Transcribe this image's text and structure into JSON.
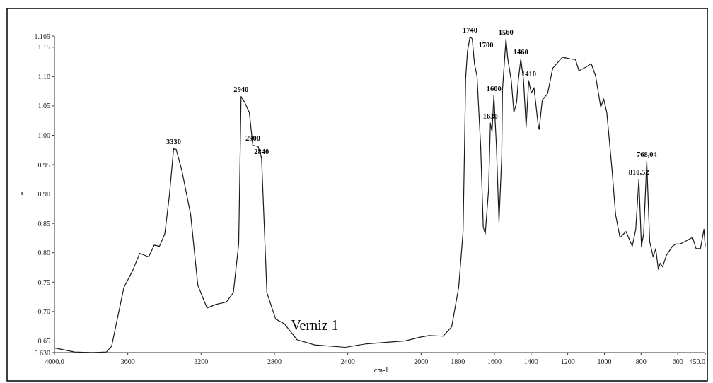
{
  "chart_data": {
    "type": "line",
    "xlabel": "cm-1",
    "ylabel": "A",
    "xlim": [
      4000,
      450
    ],
    "ylim": [
      0.63,
      1.169
    ],
    "xticks": [
      {
        "value": 4000,
        "label": "4000.0"
      },
      3600,
      3200,
      2800,
      2400,
      2000,
      1800,
      1600,
      1400,
      1200,
      1000,
      800,
      600,
      {
        "value": 450,
        "label": "450.0"
      }
    ],
    "yticks": [
      {
        "value": 0.63,
        "label": "0.630"
      },
      0.65,
      {
        "value": 0.7,
        "label": "0.70"
      },
      0.75,
      {
        "value": 0.8,
        "label": "0.80"
      },
      0.85,
      {
        "value": 0.9,
        "label": "0.90"
      },
      0.95,
      {
        "value": 1.0,
        "label": "1.00"
      },
      1.05,
      {
        "value": 1.1,
        "label": "1.10"
      },
      1.15,
      1.169
    ],
    "grid": false,
    "marker": "none",
    "line_style": "solid",
    "series": [
      {
        "color": "#1a1a1a",
        "x": [
          4000,
          3891,
          3794,
          3717,
          3688,
          3660,
          3621,
          3573,
          3535,
          3486,
          3456,
          3427,
          3398,
          3373,
          3350,
          3336,
          3305,
          3257,
          3218,
          3168,
          3120,
          3063,
          3024,
          2995,
          2982,
          2962,
          2937,
          2918,
          2889,
          2870,
          2841,
          2793,
          2745,
          2677,
          2581,
          2413,
          2297,
          2085,
          2009,
          1957,
          1880,
          1833,
          1795,
          1771,
          1763,
          1757,
          1747,
          1733,
          1721,
          1709,
          1695,
          1675,
          1661,
          1650,
          1632,
          1622,
          1613,
          1603,
          1589,
          1575,
          1560,
          1556,
          1537,
          1527,
          1508,
          1494,
          1479,
          1470,
          1456,
          1441,
          1427,
          1413,
          1399,
          1384,
          1360,
          1356,
          1339,
          1310,
          1282,
          1229,
          1186,
          1158,
          1139,
          1101,
          1072,
          1048,
          1020,
          1004,
          987,
          958,
          939,
          915,
          882,
          848,
          829,
          812,
          798,
          786,
          769,
          753,
          734,
          720,
          706,
          696,
          682,
          663,
          629,
          610,
          586,
          562,
          519,
          500,
          476,
          457,
          450
        ],
        "values": [
          0.638,
          0.631,
          0.63,
          0.631,
          0.641,
          0.683,
          0.741,
          0.77,
          0.799,
          0.793,
          0.813,
          0.811,
          0.832,
          0.898,
          0.977,
          0.976,
          0.94,
          0.865,
          0.745,
          0.706,
          0.712,
          0.716,
          0.732,
          0.815,
          1.066,
          1.056,
          1.039,
          0.983,
          0.981,
          0.961,
          0.732,
          0.687,
          0.679,
          0.652,
          0.643,
          0.639,
          0.645,
          0.65,
          0.656,
          0.659,
          0.658,
          0.674,
          0.741,
          0.836,
          0.981,
          1.097,
          1.143,
          1.168,
          1.164,
          1.122,
          1.101,
          0.981,
          0.844,
          0.832,
          0.907,
          1.021,
          1.006,
          1.068,
          0.981,
          0.852,
          0.965,
          1.077,
          1.164,
          1.13,
          1.093,
          1.039,
          1.056,
          1.093,
          1.13,
          1.093,
          1.014,
          1.093,
          1.072,
          1.081,
          1.014,
          1.01,
          1.06,
          1.071,
          1.114,
          1.133,
          1.13,
          1.129,
          1.11,
          1.116,
          1.122,
          1.101,
          1.048,
          1.062,
          1.039,
          0.94,
          0.865,
          0.826,
          0.836,
          0.811,
          0.84,
          0.925,
          0.811,
          0.832,
          0.956,
          0.819,
          0.793,
          0.807,
          0.772,
          0.782,
          0.776,
          0.795,
          0.811,
          0.815,
          0.815,
          0.819,
          0.826,
          0.807,
          0.807,
          0.84,
          0.811
        ]
      }
    ],
    "annotations": [
      {
        "text": "3330",
        "x": 3350,
        "y": 0.977
      },
      {
        "text": "2940",
        "x": 2982,
        "y": 1.066
      },
      {
        "text": "2900",
        "x": 2918,
        "y": 0.983
      },
      {
        "text": "2840",
        "x": 2870,
        "y": 0.961
      },
      {
        "text": "1740",
        "x": 1733,
        "y": 1.168
      },
      {
        "text": "1700",
        "x": 1721,
        "y": 1.164
      },
      {
        "text": "1560",
        "x": 1537,
        "y": 1.164
      },
      {
        "text": "1460",
        "x": 1456,
        "y": 1.13
      },
      {
        "text": "1410",
        "x": 1413,
        "y": 1.093
      },
      {
        "text": "1600",
        "x": 1603,
        "y": 1.068
      },
      {
        "text": "1630",
        "x": 1622,
        "y": 1.021
      },
      {
        "text": "810,52",
        "x": 812,
        "y": 0.925
      },
      {
        "text": "768,04",
        "x": 769,
        "y": 0.956
      },
      "Verniz 1"
    ]
  }
}
